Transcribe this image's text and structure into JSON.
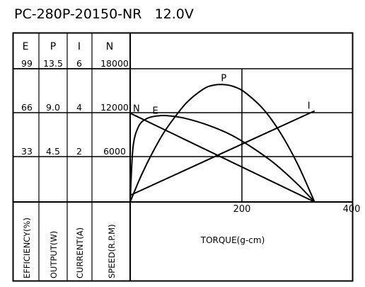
{
  "title": "PC-280P-20150-NR   12.0V",
  "chart_data": {
    "type": "line",
    "title": "PC-280P-20150-NR   12.0V",
    "xlabel": "TORQUE(g-cm)",
    "x_ticks": [
      "200",
      "400"
    ],
    "xlim": [
      0,
      400
    ],
    "grid": true,
    "left_table": {
      "columns": [
        {
          "header": "E",
          "values": [
            "99",
            "66",
            "33"
          ],
          "axis_label": "EFFICIENCY(%)"
        },
        {
          "header": "P",
          "values": [
            "13.5",
            "9.0",
            "4.5"
          ],
          "axis_label": "OUTPUT(W)"
        },
        {
          "header": "I",
          "values": [
            "6",
            "4",
            "2"
          ],
          "axis_label": "CURRENT(A)"
        },
        {
          "header": "N",
          "values": [
            "18000",
            "12000",
            "6000"
          ],
          "axis_label": "SPEED(R.P.M)"
        }
      ]
    },
    "series": [
      {
        "name": "N",
        "unit": "R.P.M",
        "x": [
          0,
          330
        ],
        "y": [
          12000,
          0
        ]
      },
      {
        "name": "I",
        "unit": "A",
        "x": [
          0,
          330
        ],
        "y": [
          0.3,
          4.1
        ]
      },
      {
        "name": "P",
        "unit": "W",
        "x": [
          0,
          20,
          40,
          60,
          80,
          100,
          120,
          140,
          165,
          190,
          210,
          240,
          270,
          300,
          330
        ],
        "y": [
          0,
          2.7,
          5.0,
          7.0,
          8.6,
          10.0,
          11.0,
          11.7,
          11.9,
          11.6,
          10.9,
          9.3,
          6.9,
          3.8,
          0
        ]
      },
      {
        "name": "E",
        "unit": "%",
        "x": [
          0,
          5,
          15,
          30,
          50,
          70,
          100,
          140,
          180,
          220,
          260,
          300,
          330
        ],
        "y": [
          0,
          40,
          56,
          62,
          64,
          64,
          62,
          57,
          50,
          40,
          28,
          13,
          0
        ]
      }
    ]
  }
}
